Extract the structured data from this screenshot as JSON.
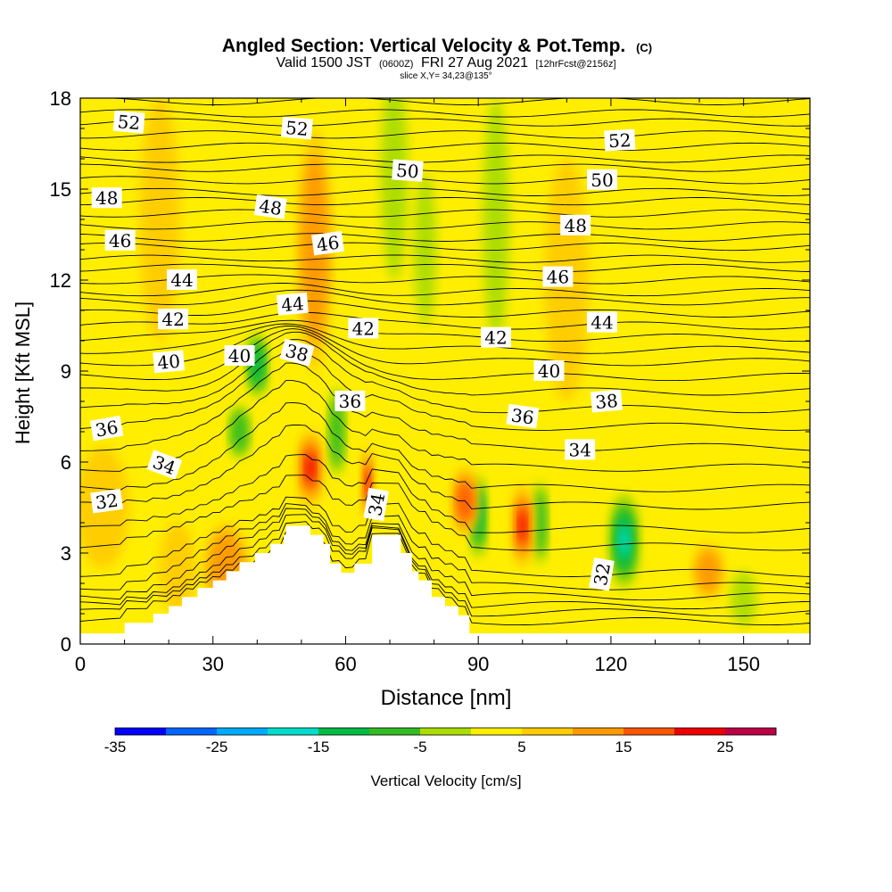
{
  "chart_data": {
    "type": "heatmap",
    "title": "Angled Section: Vertical Velocity & Pot.Temp.",
    "title_unit": "(C)",
    "subtitle_main": "Valid 1500 JST",
    "subtitle_zulu": "(0600Z)",
    "subtitle_date": "FRI 27 Aug 2021",
    "subtitle_fcst": "[12hrFcst@2156z]",
    "slice": "slice X,Y= 34,23@135°",
    "xlabel": "Distance [nm]",
    "ylabel": "Height [Kft MSL]",
    "xlim": [
      0,
      165
    ],
    "ylim": [
      0,
      18
    ],
    "x_ticks": [
      "0",
      "30",
      "60",
      "90",
      "120",
      "150"
    ],
    "y_ticks": [
      "0",
      "3",
      "6",
      "9",
      "12",
      "15",
      "18"
    ],
    "colorbar": {
      "label": "Vertical Velocity [cm/s]",
      "range": [
        -35,
        30
      ],
      "tick_labels": [
        "-35",
        "-25",
        "-15",
        "-5",
        "5",
        "15",
        "25"
      ]
    },
    "terrain_profile": [
      [
        0,
        0.35
      ],
      [
        10,
        0.35
      ],
      [
        10,
        0.7
      ],
      [
        16.5,
        0.7
      ],
      [
        16.5,
        1.0
      ],
      [
        20,
        1.0
      ],
      [
        20,
        1.25
      ],
      [
        23,
        1.25
      ],
      [
        23,
        1.55
      ],
      [
        26.5,
        1.55
      ],
      [
        26.5,
        1.85
      ],
      [
        30,
        1.85
      ],
      [
        30,
        2.1
      ],
      [
        33,
        2.1
      ],
      [
        33,
        2.4
      ],
      [
        36,
        2.4
      ],
      [
        36,
        2.7
      ],
      [
        39.5,
        2.7
      ],
      [
        39.5,
        3.0
      ],
      [
        43,
        3.0
      ],
      [
        43,
        3.3
      ],
      [
        46,
        3.3
      ],
      [
        46,
        3.6
      ],
      [
        46.5,
        3.6
      ],
      [
        46.5,
        3.9
      ],
      [
        52,
        3.9
      ],
      [
        52,
        3.6
      ],
      [
        55,
        3.6
      ],
      [
        55,
        3.3
      ],
      [
        56.5,
        3.3
      ],
      [
        56.5,
        2.65
      ],
      [
        59,
        2.65
      ],
      [
        59,
        2.35
      ],
      [
        62,
        2.35
      ],
      [
        62,
        2.65
      ],
      [
        66,
        2.65
      ],
      [
        66,
        3.6
      ],
      [
        72.5,
        3.6
      ],
      [
        72.5,
        3.0
      ],
      [
        75,
        3.0
      ],
      [
        75,
        2.4
      ],
      [
        76.5,
        2.4
      ],
      [
        76.5,
        2.1
      ],
      [
        79.5,
        2.1
      ],
      [
        79.5,
        1.55
      ],
      [
        82.5,
        1.55
      ],
      [
        82.5,
        1.25
      ],
      [
        85.5,
        1.25
      ],
      [
        85.5,
        0.95
      ],
      [
        88,
        0.95
      ],
      [
        88,
        0.35
      ],
      [
        165,
        0.35
      ]
    ],
    "updrafts": [
      {
        "x": 5,
        "y": 4.5,
        "w": 12,
        "h": 4.0,
        "value": 6
      },
      {
        "x": 18,
        "y": 14,
        "w": 9,
        "h": 8,
        "value": 8
      },
      {
        "x": 22,
        "y": 2.5,
        "w": 8,
        "h": 3.0,
        "value": 8
      },
      {
        "x": 33,
        "y": 2.5,
        "w": 10,
        "h": 3.0,
        "value": 10
      },
      {
        "x": 52,
        "y": 5.8,
        "w": 6,
        "h": 2.6,
        "value": 20
      },
      {
        "x": 53,
        "y": 13,
        "w": 8,
        "h": 8,
        "value": 14
      },
      {
        "x": 65,
        "y": 5.3,
        "w": 3.0,
        "h": 2.5,
        "value": 20
      },
      {
        "x": 87,
        "y": 4.7,
        "w": 6,
        "h": 2.3,
        "value": 18
      },
      {
        "x": 100,
        "y": 3.9,
        "w": 5,
        "h": 2.8,
        "value": 20
      },
      {
        "x": 110,
        "y": 12,
        "w": 10,
        "h": 8,
        "value": 8
      },
      {
        "x": 142,
        "y": 2.4,
        "w": 7,
        "h": 1.8,
        "value": 12
      },
      {
        "x": 148,
        "y": 16,
        "w": 14,
        "h": 4,
        "value": 4
      }
    ],
    "downdrafts": [
      {
        "x": 40,
        "y": 9.2,
        "w": 5,
        "h": 2.2,
        "value": -15
      },
      {
        "x": 36,
        "y": 7.0,
        "w": 5,
        "h": 1.8,
        "value": -10
      },
      {
        "x": 58,
        "y": 7.0,
        "w": 4,
        "h": 3.0,
        "value": -12
      },
      {
        "x": 71,
        "y": 15.5,
        "w": 6,
        "h": 7,
        "value": -8
      },
      {
        "x": 78,
        "y": 13.0,
        "w": 5,
        "h": 5,
        "value": -6
      },
      {
        "x": 90,
        "y": 4.2,
        "w": 4,
        "h": 2.8,
        "value": -16
      },
      {
        "x": 94,
        "y": 14.0,
        "w": 6,
        "h": 8,
        "value": -6
      },
      {
        "x": 104,
        "y": 4.0,
        "w": 3.5,
        "h": 2.8,
        "value": -12
      },
      {
        "x": 123,
        "y": 3.4,
        "w": 7,
        "h": 3.2,
        "value": -22
      },
      {
        "x": 150,
        "y": 1.5,
        "w": 6,
        "h": 1.8,
        "value": -6
      }
    ],
    "isentrope_heights": [
      0.45,
      0.75,
      1.0,
      1.3,
      1.65,
      2.1,
      3.0,
      3.6,
      4.4,
      5.0,
      5.7,
      6.4,
      7.1,
      7.7,
      8.3,
      8.8,
      9.3,
      9.7,
      10.1,
      10.5,
      10.9,
      11.3,
      11.6,
      12.0,
      12.4,
      12.7,
      13.1,
      13.4,
      13.8,
      14.2,
      14.6,
      14.9,
      15.3,
      15.7,
      16.0,
      16.4,
      16.8,
      17.2,
      17.5,
      17.9
    ],
    "contour_labels": [
      {
        "text": "52",
        "x": 11,
        "y": 17.2,
        "rot": 5
      },
      {
        "text": "52",
        "x": 49,
        "y": 17.0,
        "rot": 5
      },
      {
        "text": "52",
        "x": 122,
        "y": 16.6,
        "rot": -3
      },
      {
        "text": "50",
        "x": 74,
        "y": 15.6,
        "rot": 4
      },
      {
        "text": "50",
        "x": 118,
        "y": 15.3,
        "rot": 0
      },
      {
        "text": "48",
        "x": 6,
        "y": 14.7,
        "rot": 0
      },
      {
        "text": "48",
        "x": 43,
        "y": 14.4,
        "rot": 8
      },
      {
        "text": "48",
        "x": 112,
        "y": 13.8,
        "rot": 0
      },
      {
        "text": "46",
        "x": 9,
        "y": 13.3,
        "rot": 0
      },
      {
        "text": "46",
        "x": 56,
        "y": 13.2,
        "rot": -8
      },
      {
        "text": "46",
        "x": 108,
        "y": 12.1,
        "rot": 0
      },
      {
        "text": "44",
        "x": 23,
        "y": 12.0,
        "rot": 0
      },
      {
        "text": "44",
        "x": 48,
        "y": 11.2,
        "rot": -5
      },
      {
        "text": "44",
        "x": 118,
        "y": 10.6,
        "rot": 0
      },
      {
        "text": "42",
        "x": 21,
        "y": 10.7,
        "rot": 0
      },
      {
        "text": "42",
        "x": 64,
        "y": 10.4,
        "rot": 0
      },
      {
        "text": "42",
        "x": 94,
        "y": 10.1,
        "rot": 0
      },
      {
        "text": "40",
        "x": 20,
        "y": 9.3,
        "rot": -5
      },
      {
        "text": "40",
        "x": 36,
        "y": 9.5,
        "rot": 0
      },
      {
        "text": "40",
        "x": 106,
        "y": 9.0,
        "rot": 0
      },
      {
        "text": "38",
        "x": 49,
        "y": 9.6,
        "rot": 15
      },
      {
        "text": "38",
        "x": 119,
        "y": 8.0,
        "rot": -5
      },
      {
        "text": "36",
        "x": 6,
        "y": 7.1,
        "rot": -10
      },
      {
        "text": "36",
        "x": 61,
        "y": 8.0,
        "rot": 0
      },
      {
        "text": "36",
        "x": 100,
        "y": 7.5,
        "rot": 8
      },
      {
        "text": "34",
        "x": 19,
        "y": 5.9,
        "rot": 20
      },
      {
        "text": "34",
        "x": 67,
        "y": 4.6,
        "rot": -80
      },
      {
        "text": "34",
        "x": 113,
        "y": 6.4,
        "rot": 0
      },
      {
        "text": "32",
        "x": 6,
        "y": 4.7,
        "rot": -8
      },
      {
        "text": "32",
        "x": 118,
        "y": 2.3,
        "rot": -80
      }
    ]
  }
}
